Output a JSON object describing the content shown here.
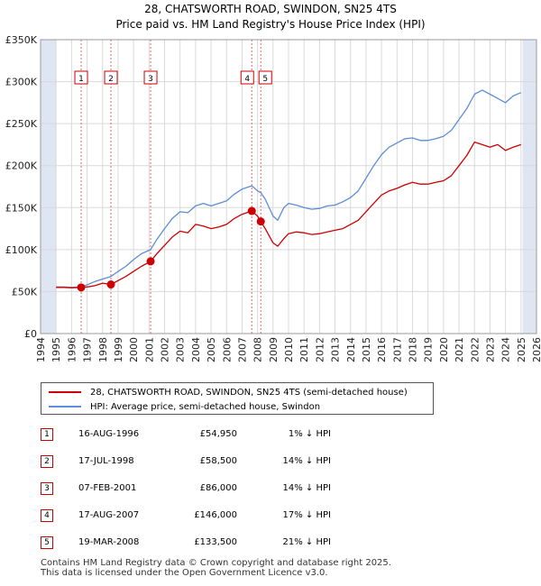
{
  "title_line1": "28, CHATSWORTH ROAD, SWINDON, SN25 4TS",
  "title_line2": "Price paid vs. HM Land Registry's House Price Index (HPI)",
  "legend": {
    "property": "28, CHATSWORTH ROAD, SWINDON, SN25 4TS (semi-detached house)",
    "hpi": "HPI: Average price, semi-detached house, Swindon"
  },
  "colors": {
    "property": "#cc0000",
    "hpi": "#5b8ed4",
    "shade": "#dde6f2",
    "grid": "#d9d9d9"
  },
  "sales": [
    {
      "num": "1",
      "date": "16-AUG-1996",
      "price": "£54,950",
      "hpi": "1% ↓ HPI"
    },
    {
      "num": "2",
      "date": "17-JUL-1998",
      "price": "£58,500",
      "hpi": "14% ↓ HPI"
    },
    {
      "num": "3",
      "date": "07-FEB-2001",
      "price": "£86,000",
      "hpi": "14% ↓ HPI"
    },
    {
      "num": "4",
      "date": "17-AUG-2007",
      "price": "£146,000",
      "hpi": "17% ↓ HPI"
    },
    {
      "num": "5",
      "date": "19-MAR-2008",
      "price": "£133,500",
      "hpi": "21% ↓ HPI"
    }
  ],
  "footer": {
    "line1": "Contains HM Land Registry data © Crown copyright and database right 2025.",
    "line2": "This data is licensed under the Open Government Licence v3.0."
  },
  "chart_data": {
    "type": "line",
    "title": "28, CHATSWORTH ROAD, SWINDON, SN25 4TS",
    "subtitle": "Price paid vs. HM Land Registry's House Price Index (HPI)",
    "xlabel": "",
    "ylabel": "",
    "xlim": [
      1994,
      2026
    ],
    "ylim": [
      0,
      350000
    ],
    "x_ticks": [
      1994,
      1995,
      1996,
      1997,
      1998,
      1999,
      2000,
      2001,
      2002,
      2003,
      2004,
      2005,
      2006,
      2007,
      2008,
      2009,
      2010,
      2011,
      2012,
      2013,
      2014,
      2015,
      2016,
      2017,
      2018,
      2019,
      2020,
      2021,
      2022,
      2023,
      2024,
      2025,
      2026
    ],
    "y_ticks": [
      0,
      50000,
      100000,
      150000,
      200000,
      250000,
      300000,
      350000
    ],
    "y_tick_labels": [
      "£0",
      "£50K",
      "£100K",
      "£150K",
      "£200K",
      "£250K",
      "£300K",
      "£350K"
    ],
    "shaded_ranges": [
      [
        1994,
        1995
      ],
      [
        2025.1,
        2026
      ]
    ],
    "series": [
      {
        "name": "28, CHATSWORTH ROAD, SWINDON, SN25 4TS (semi-detached house)",
        "color": "#cc0000",
        "x": [
          1995.0,
          1995.5,
          1996.0,
          1996.62,
          1997.0,
          1997.5,
          1998.0,
          1998.54,
          1999.0,
          1999.5,
          2000.0,
          2000.5,
          2001.1,
          2001.5,
          2002.0,
          2002.5,
          2003.0,
          2003.5,
          2004.0,
          2004.5,
          2005.0,
          2005.5,
          2006.0,
          2006.5,
          2007.0,
          2007.63,
          2008.0,
          2008.21,
          2008.5,
          2009.0,
          2009.3,
          2009.7,
          2010.0,
          2010.5,
          2011.0,
          2011.5,
          2012.0,
          2012.5,
          2013.0,
          2013.5,
          2014.0,
          2014.5,
          2015.0,
          2015.5,
          2016.0,
          2016.5,
          2017.0,
          2017.5,
          2018.0,
          2018.5,
          2019.0,
          2019.5,
          2020.0,
          2020.5,
          2021.0,
          2021.5,
          2022.0,
          2022.5,
          2023.0,
          2023.5,
          2024.0,
          2024.5,
          2025.0
        ],
        "y": [
          55000,
          55000,
          54500,
          54950,
          55500,
          57000,
          60000,
          58500,
          63000,
          68000,
          74000,
          80000,
          86000,
          95000,
          105000,
          115000,
          122000,
          120000,
          130000,
          128000,
          125000,
          127000,
          130000,
          137000,
          142000,
          146000,
          140000,
          133500,
          125000,
          108000,
          104000,
          113000,
          119000,
          121000,
          120000,
          118000,
          119000,
          121000,
          123000,
          125000,
          130000,
          135000,
          145000,
          155000,
          165000,
          170000,
          173000,
          177000,
          180000,
          178000,
          178000,
          180000,
          182000,
          188000,
          200000,
          212000,
          228000,
          225000,
          222000,
          225000,
          218000,
          222000,
          225000
        ]
      },
      {
        "name": "HPI: Average price, semi-detached house, Swindon",
        "color": "#5b8ed4",
        "x": [
          1995.0,
          1995.5,
          1996.0,
          1996.62,
          1997.0,
          1997.5,
          1998.0,
          1998.54,
          1999.0,
          1999.5,
          2000.0,
          2000.5,
          2001.1,
          2001.5,
          2002.0,
          2002.5,
          2003.0,
          2003.5,
          2004.0,
          2004.5,
          2005.0,
          2005.5,
          2006.0,
          2006.5,
          2007.0,
          2007.63,
          2008.0,
          2008.21,
          2008.5,
          2009.0,
          2009.3,
          2009.7,
          2010.0,
          2010.5,
          2011.0,
          2011.5,
          2012.0,
          2012.5,
          2013.0,
          2013.5,
          2014.0,
          2014.5,
          2015.0,
          2015.5,
          2016.0,
          2016.5,
          2017.0,
          2017.5,
          2018.0,
          2018.5,
          2019.0,
          2019.5,
          2020.0,
          2020.5,
          2021.0,
          2021.5,
          2022.0,
          2022.5,
          2023.0,
          2023.5,
          2024.0,
          2024.5,
          2025.0
        ],
        "y": [
          55500,
          55500,
          55000,
          55500,
          58000,
          62000,
          65000,
          68000,
          74000,
          80000,
          88000,
          95000,
          100000,
          112000,
          125000,
          137000,
          145000,
          144000,
          152000,
          155000,
          152000,
          155000,
          158000,
          166000,
          172000,
          176000,
          170000,
          168000,
          160000,
          140000,
          135000,
          150000,
          155000,
          153000,
          150000,
          148000,
          149000,
          152000,
          153000,
          157000,
          162000,
          170000,
          185000,
          200000,
          213000,
          222000,
          227000,
          232000,
          233000,
          230000,
          230000,
          232000,
          235000,
          242000,
          255000,
          268000,
          285000,
          290000,
          285000,
          280000,
          275000,
          283000,
          287000
        ]
      }
    ],
    "sale_markers": [
      {
        "label": "1",
        "x": 1996.62,
        "y": 54950
      },
      {
        "label": "2",
        "x": 1998.54,
        "y": 58500
      },
      {
        "label": "3",
        "x": 2001.1,
        "y": 86000
      },
      {
        "label": "4",
        "x": 2007.63,
        "y": 146000
      },
      {
        "label": "5",
        "x": 2008.21,
        "y": 133500
      }
    ]
  }
}
